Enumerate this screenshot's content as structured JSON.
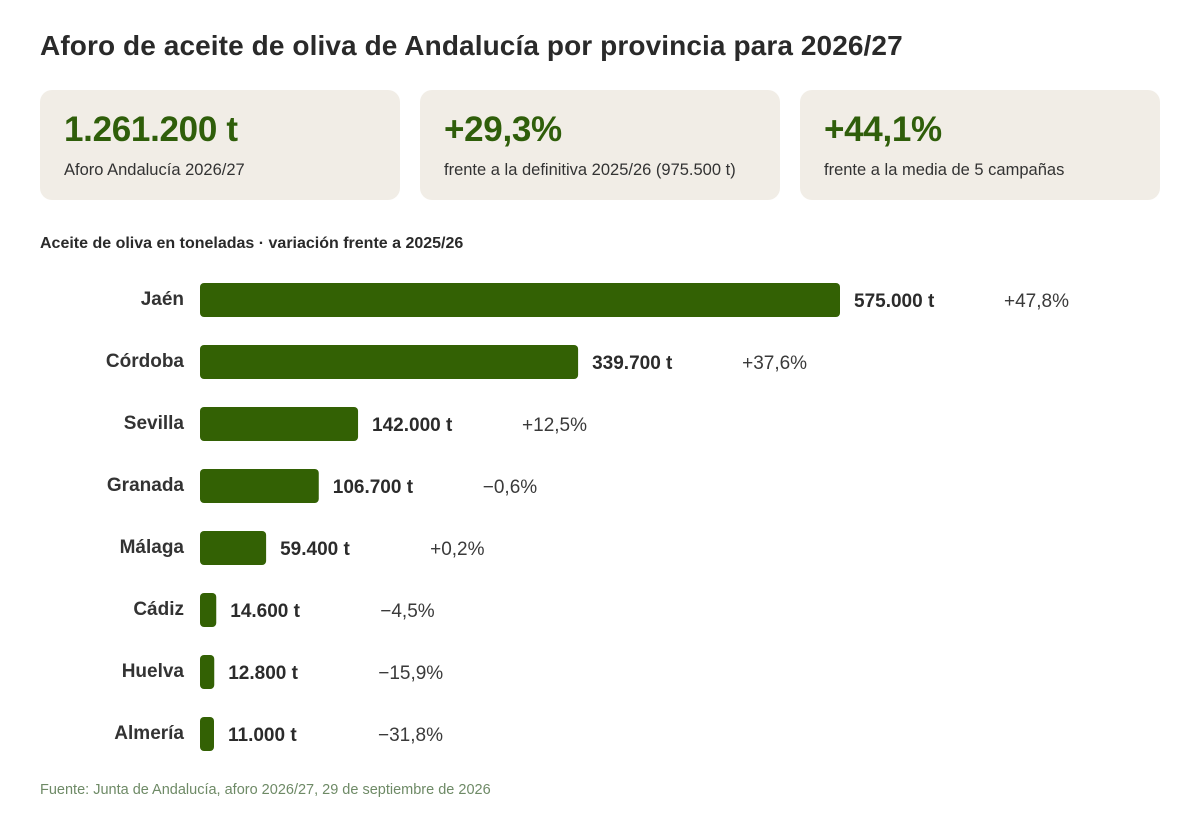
{
  "title": "Aforo de aceite de oliva de Andalucía por provincia para 2026/27",
  "kpis": [
    {
      "value": "1.261.200 t",
      "label": "Aforo Andalucía 2026/27"
    },
    {
      "value": "+29,3%",
      "label": "frente a la definitiva 2025/26 (975.500 t)"
    },
    {
      "value": "+44,1%",
      "label": "frente a la media de 5 campañas"
    }
  ],
  "colors": {
    "bar": "#336104",
    "kpi_value": "#2f5e0a",
    "kpi_bg": "#f1ede6",
    "source": "#6e8a66"
  },
  "chart_data": {
    "type": "bar",
    "orientation": "horizontal",
    "subtitle": "Aceite de oliva en toneladas · variación frente a 2025/26",
    "categories": [
      "Jaén",
      "Córdoba",
      "Sevilla",
      "Granada",
      "Málaga",
      "Cádiz",
      "Huelva",
      "Almería"
    ],
    "values": [
      575000,
      339700,
      142000,
      106700,
      59400,
      14600,
      12800,
      11000
    ],
    "value_labels": [
      "575.000 t",
      "339.700 t",
      "142.000 t",
      "106.700 t",
      "59.400 t",
      "14.600 t",
      "12.800 t",
      "11.000 t"
    ],
    "change_labels": [
      "+47,8%",
      "+37,6%",
      "+12,5%",
      "−0,6%",
      "+0,2%",
      "−4,5%",
      "−15,9%",
      "−31,8%"
    ],
    "xlim": [
      0,
      575000
    ],
    "grid": false,
    "legend": "none"
  },
  "source": "Fuente: Junta de Andalucía, aforo 2026/27, 29 de septiembre de 2026"
}
